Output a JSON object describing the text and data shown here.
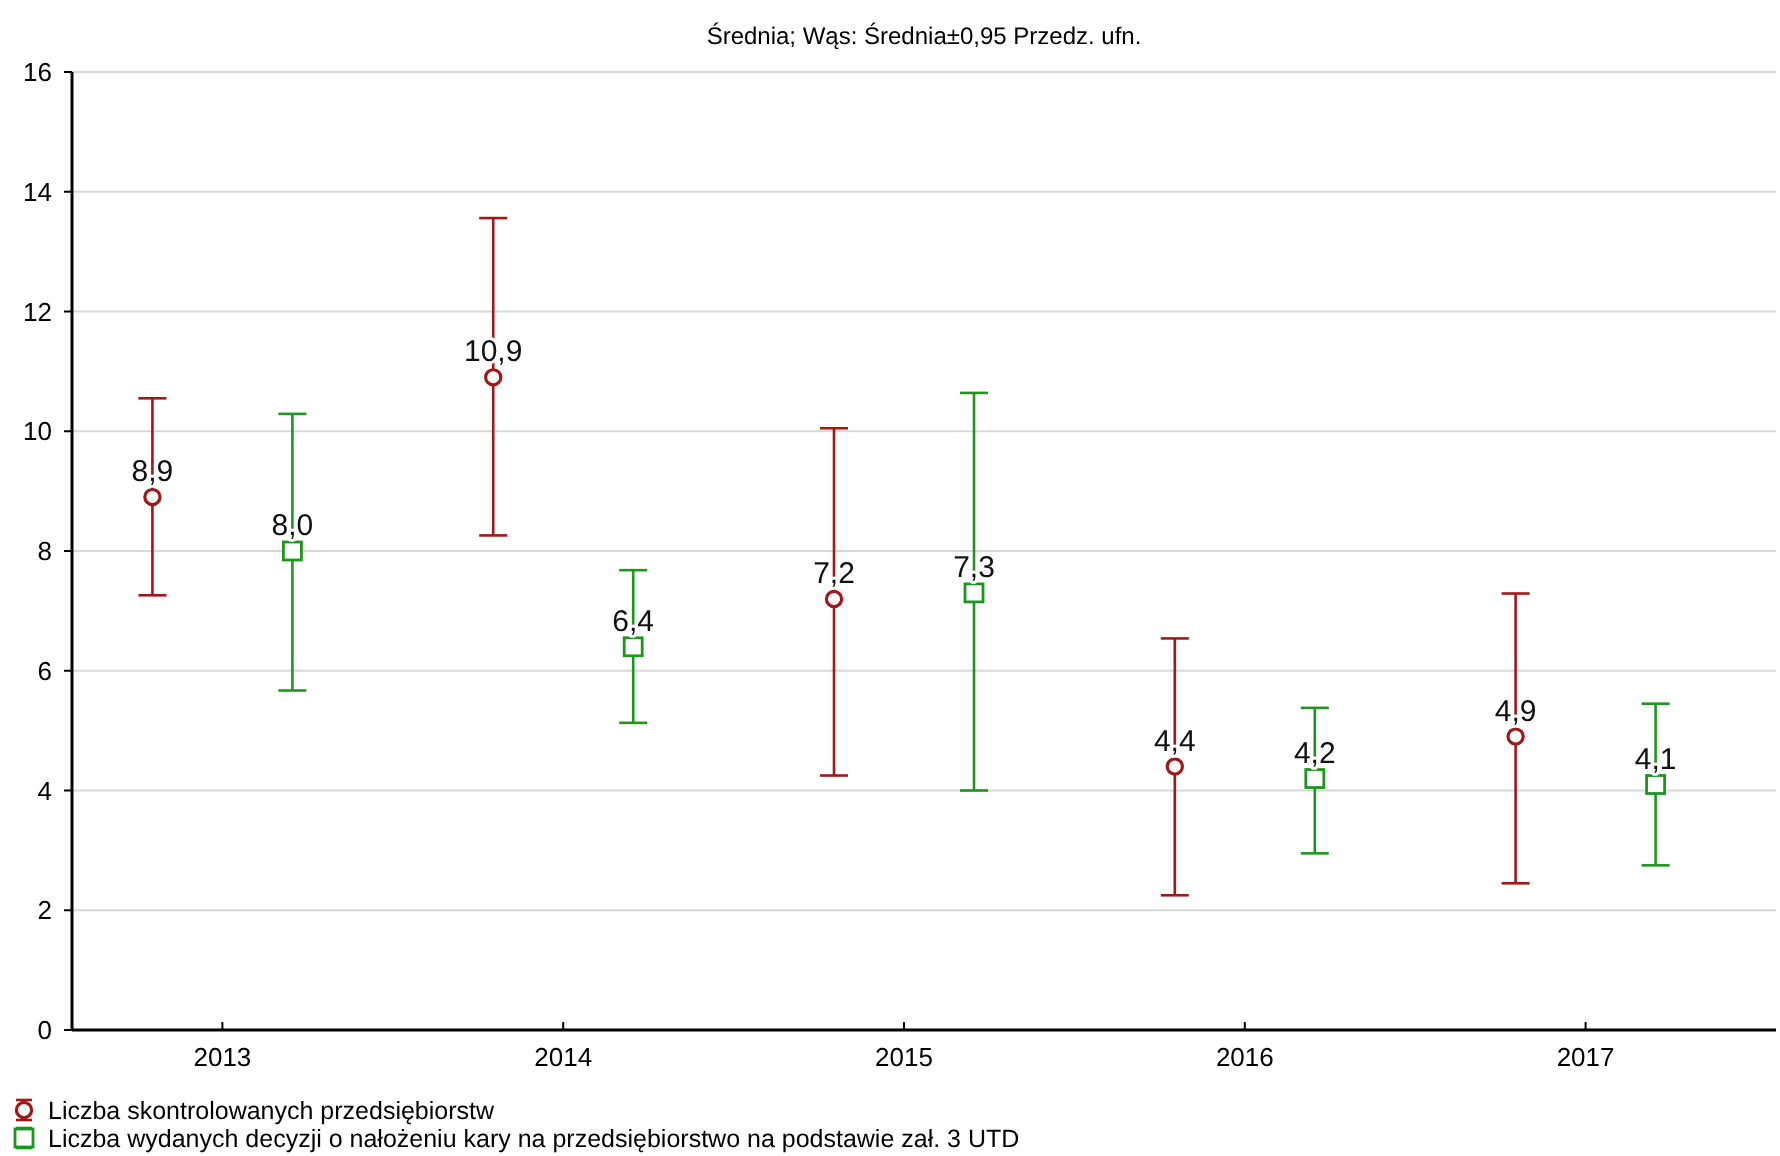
{
  "chart_data": {
    "type": "scatter",
    "title": "Średnia; Wąs: Średnia±0,95 Przedz. ufn.",
    "categories": [
      "2013",
      "2014",
      "2015",
      "2016",
      "2017"
    ],
    "series": [
      {
        "name": "Liczba skontrolowanych przedsiębiorstw",
        "color": "#a01818",
        "marker": "circle",
        "values": [
          8.9,
          10.9,
          7.2,
          4.4,
          4.9
        ],
        "value_labels": [
          "8,9",
          "10,9",
          "7,2",
          "4,4",
          "4,9"
        ],
        "errors": [
          [
            7.26,
            10.55
          ],
          [
            8.26,
            13.56
          ],
          [
            4.25,
            10.05
          ],
          [
            2.25,
            6.54
          ],
          [
            2.45,
            7.29
          ]
        ]
      },
      {
        "name": "Liczba wydanych decyzji o nałożeniu kary na przedsiębiorstwo na podstawie zał. 3 UTD",
        "color": "#1e961e",
        "marker": "square",
        "values": [
          8.0,
          6.4,
          7.3,
          4.2,
          4.1
        ],
        "value_labels": [
          "8,0",
          "6,4",
          "7,3",
          "4,2",
          "4,1"
        ],
        "errors": [
          [
            5.67,
            10.29
          ],
          [
            5.13,
            7.68
          ],
          [
            4.0,
            10.64
          ],
          [
            2.95,
            5.38
          ],
          [
            2.75,
            5.45
          ]
        ]
      }
    ],
    "ylim": [
      0,
      16
    ],
    "yticks": [
      0,
      2,
      4,
      6,
      8,
      10,
      12,
      14,
      16
    ],
    "grid": "y",
    "legend": "bottom"
  }
}
